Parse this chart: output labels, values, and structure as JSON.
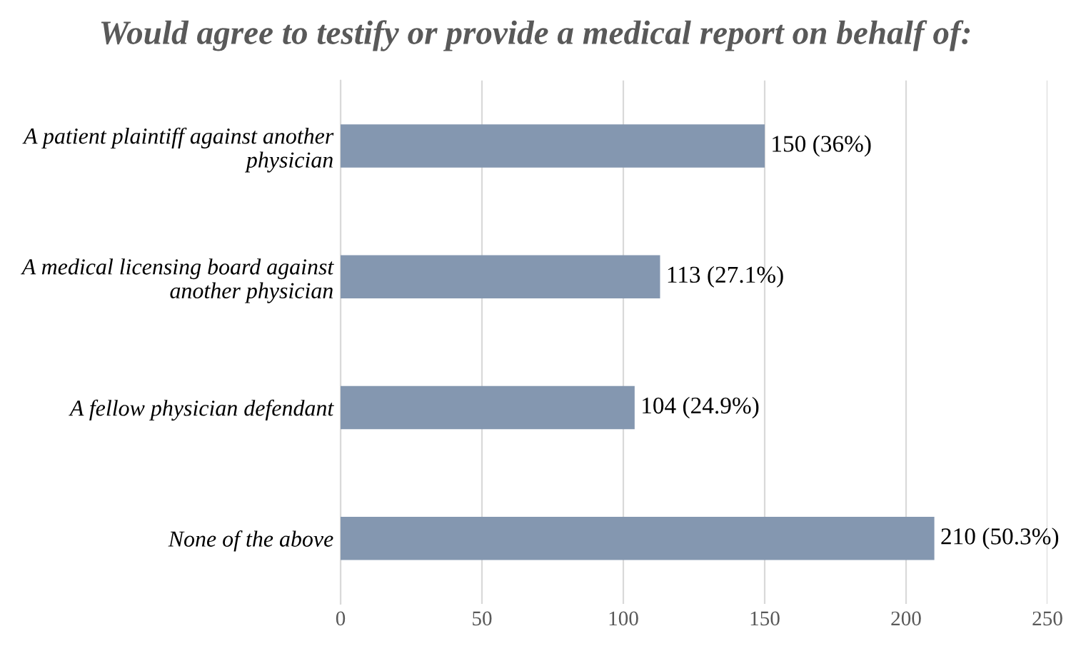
{
  "chart_data": {
    "type": "bar",
    "orientation": "horizontal",
    "title": "Would agree to testify or provide a medical report on behalf of:",
    "categories": [
      "A patient plaintiff against another physician",
      "A medical licensing board against another physician",
      "A fellow physician defendant",
      "None of the above"
    ],
    "values": [
      150,
      113,
      104,
      210
    ],
    "color": "#8497b0",
    "value_labels": [
      "150 (36%)",
      "113 (27.1%)",
      "104 (24.9%)",
      "210 (50.3%)"
    ],
    "xlim": [
      0,
      250
    ],
    "xticks": [
      0,
      50,
      100,
      150,
      200,
      250
    ],
    "grid": "x",
    "legend": false
  }
}
